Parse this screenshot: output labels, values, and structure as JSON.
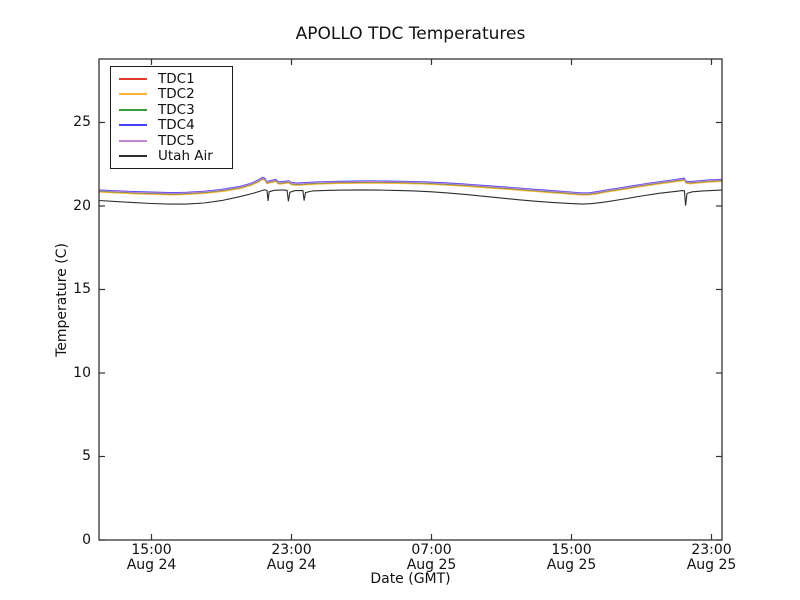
{
  "chart_data": {
    "type": "line",
    "title": "APOLLO TDC Temperatures",
    "xlabel": "Date (GMT)",
    "ylabel": "Temperature (C)",
    "grid": false,
    "legend_position": "upper-left",
    "x_axis": {
      "encoding_note": "t = hours after Aug 24 12:00 GMT",
      "range": [
        0,
        35.6
      ],
      "ticks": [
        {
          "t": 3,
          "time": "15:00",
          "date": "Aug 24"
        },
        {
          "t": 11,
          "time": "23:00",
          "date": "Aug 24"
        },
        {
          "t": 19,
          "time": "07:00",
          "date": "Aug 25"
        },
        {
          "t": 27,
          "time": "15:00",
          "date": "Aug 25"
        },
        {
          "t": 35,
          "time": "23:00",
          "date": "Aug 25"
        }
      ]
    },
    "y_axis": {
      "range": [
        0,
        28.8
      ],
      "ticks": [
        0,
        5,
        10,
        15,
        20,
        25
      ]
    },
    "tdc_base_curve": {
      "t": [
        0,
        1,
        2,
        3,
        4,
        4.5,
        5,
        6,
        7,
        8,
        8.7,
        9.1,
        9.35,
        9.5,
        9.6,
        9.75,
        10.1,
        10.25,
        10.5,
        10.85,
        11.0,
        11.3,
        11.8,
        12.5,
        13.5,
        14.5,
        15.5,
        16.5,
        17.5,
        18.5,
        19.5,
        20.5,
        21.5,
        22.5,
        23.5,
        24.5,
        25.5,
        26.5,
        27.2,
        27.6,
        28.0,
        28.5,
        29.0,
        29.8,
        30.8,
        31.8,
        32.8,
        33.3,
        33.45,
        33.55,
        33.8,
        34.2,
        34.8,
        35.6
      ],
      "v": [
        20.92,
        20.87,
        20.82,
        20.79,
        20.76,
        20.76,
        20.78,
        20.84,
        20.95,
        21.12,
        21.32,
        21.52,
        21.68,
        21.6,
        21.42,
        21.47,
        21.55,
        21.4,
        21.42,
        21.47,
        21.36,
        21.33,
        21.36,
        21.4,
        21.43,
        21.45,
        21.46,
        21.45,
        21.43,
        21.41,
        21.36,
        21.3,
        21.23,
        21.15,
        21.07,
        20.99,
        20.91,
        20.83,
        20.77,
        20.74,
        20.75,
        20.82,
        20.92,
        21.05,
        21.22,
        21.38,
        21.52,
        21.6,
        21.63,
        21.44,
        21.42,
        21.46,
        21.52,
        21.56
      ]
    },
    "series": [
      {
        "name": "TDC1",
        "color": "#e03a30",
        "kind": "tdc_offset",
        "offset_c": -0.06
      },
      {
        "name": "TDC2",
        "color": "#ffb133",
        "kind": "tdc_offset",
        "offset_c": -0.09
      },
      {
        "name": "TDC3",
        "color": "#3b9b3b",
        "kind": "tdc_offset",
        "offset_c": -0.03
      },
      {
        "name": "TDC4",
        "color": "#4343ff",
        "kind": "tdc_offset",
        "offset_c": 0.04
      },
      {
        "name": "TDC5",
        "color": "#c484cf",
        "kind": "tdc_offset",
        "offset_c": 0.0
      },
      {
        "name": "Utah Air",
        "color": "#2e2e2e",
        "kind": "points",
        "t": [
          0,
          1,
          2,
          3,
          4,
          5,
          6,
          7,
          8,
          8.8,
          9.3,
          9.45,
          9.6,
          9.66,
          9.72,
          10.0,
          10.5,
          10.75,
          10.82,
          10.9,
          11.2,
          11.65,
          11.72,
          11.8,
          12.2,
          13,
          14,
          15,
          16,
          17,
          18,
          19,
          20,
          21,
          22,
          23,
          24,
          25,
          26,
          27,
          27.6,
          28.2,
          29,
          30,
          31,
          32,
          33,
          33.35,
          33.45,
          33.52,
          33.6,
          33.9,
          34.5,
          35.6
        ],
        "v": [
          20.33,
          20.26,
          20.2,
          20.15,
          20.11,
          20.11,
          20.18,
          20.32,
          20.55,
          20.75,
          20.92,
          20.97,
          20.93,
          20.3,
          20.85,
          20.94,
          20.96,
          20.93,
          20.28,
          20.82,
          20.92,
          20.92,
          20.32,
          20.8,
          20.9,
          20.93,
          20.95,
          20.96,
          20.95,
          20.93,
          20.9,
          20.85,
          20.77,
          20.68,
          20.58,
          20.47,
          20.37,
          20.28,
          20.2,
          20.14,
          20.11,
          20.14,
          20.25,
          20.42,
          20.6,
          20.76,
          20.88,
          20.92,
          20.9,
          20.02,
          20.75,
          20.85,
          20.9,
          20.95
        ]
      }
    ],
    "frame_color": "#333333",
    "text_color": "#111111",
    "background_color": "#ffffff"
  }
}
